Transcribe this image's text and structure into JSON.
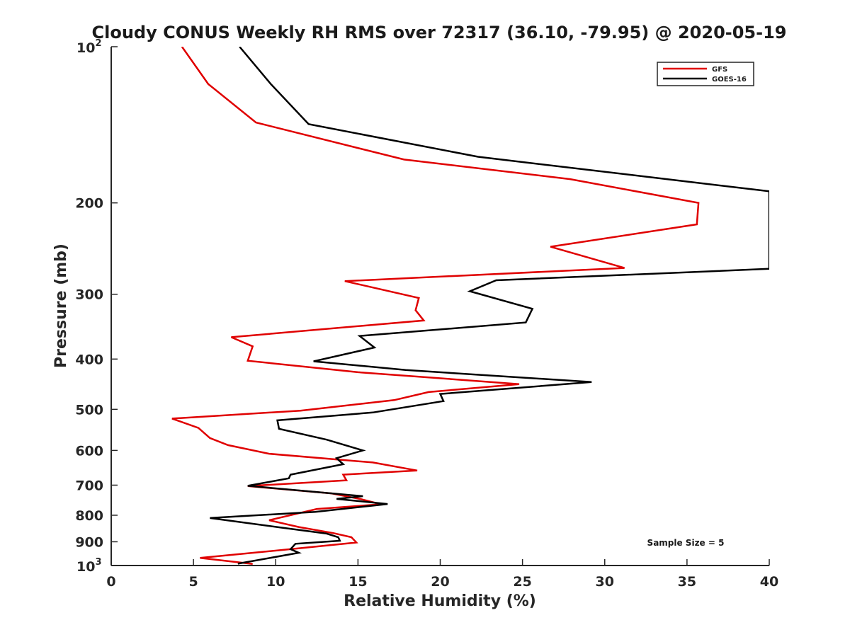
{
  "chart_data": {
    "type": "line",
    "title": "Cloudy CONUS Weekly RH RMS over 72317 (36.10, -79.95) @ 2020-05-19",
    "xlabel": "Relative Humidity (%)",
    "ylabel": "Pressure (mb)",
    "xlim": [
      0,
      40
    ],
    "ylim": [
      100,
      1000
    ],
    "y_scale": "log",
    "y_reversed": false,
    "grid": false,
    "legend_position": "top-right",
    "x_ticks": [
      "0",
      "5",
      "10",
      "15",
      "20",
      "25",
      "30",
      "35",
      "40"
    ],
    "y_ticks": [
      {
        "value": 100,
        "base": "10",
        "exp": "2"
      },
      {
        "value": 200,
        "label": "200"
      },
      {
        "value": 300,
        "label": "300"
      },
      {
        "value": 400,
        "label": "400"
      },
      {
        "value": 500,
        "label": "500"
      },
      {
        "value": 600,
        "label": "600"
      },
      {
        "value": 700,
        "label": "700"
      },
      {
        "value": 800,
        "label": "800"
      },
      {
        "value": 900,
        "label": "900"
      },
      {
        "value": 1000,
        "base": "10",
        "exp": "3"
      }
    ],
    "annotation": "Sample Size = 5",
    "series": [
      {
        "name": "GFS",
        "color": "#e00000",
        "points": [
          [
            4.3,
            100
          ],
          [
            5.9,
            118
          ],
          [
            8.8,
            140
          ],
          [
            17.8,
            165
          ],
          [
            27.9,
            180
          ],
          [
            35.7,
            200
          ],
          [
            35.6,
            220
          ],
          [
            26.7,
            243
          ],
          [
            31.2,
            267
          ],
          [
            14.2,
            283
          ],
          [
            18.7,
            305
          ],
          [
            18.5,
            322
          ],
          [
            19.0,
            337
          ],
          [
            7.3,
            363
          ],
          [
            8.6,
            378
          ],
          [
            8.3,
            403
          ],
          [
            15.0,
            424
          ],
          [
            24.8,
            447
          ],
          [
            19.3,
            463
          ],
          [
            17.2,
            480
          ],
          [
            11.5,
            503
          ],
          [
            3.7,
            521
          ],
          [
            5.3,
            543
          ],
          [
            6.0,
            568
          ],
          [
            7.1,
            586
          ],
          [
            9.6,
            609
          ],
          [
            15.9,
            633
          ],
          [
            18.6,
            656
          ],
          [
            14.1,
            668
          ],
          [
            14.3,
            685
          ],
          [
            8.3,
            703
          ],
          [
            13.4,
            726
          ],
          [
            15.2,
            745
          ],
          [
            16.4,
            762
          ],
          [
            12.5,
            778
          ],
          [
            9.6,
            818
          ],
          [
            11.4,
            843
          ],
          [
            13.5,
            866
          ],
          [
            14.6,
            882
          ],
          [
            14.9,
            903
          ],
          [
            10.9,
            930
          ],
          [
            5.4,
            967
          ],
          [
            8.6,
            993
          ]
        ]
      },
      {
        "name": "GOES-16",
        "color": "#000000",
        "points": [
          [
            7.8,
            100
          ],
          [
            9.7,
            118
          ],
          [
            12.0,
            141
          ],
          [
            22.3,
            163
          ],
          [
            40.0,
            190
          ],
          [
            40.0,
            268
          ],
          [
            23.4,
            282
          ],
          [
            21.8,
            296
          ],
          [
            25.6,
            320
          ],
          [
            25.2,
            340
          ],
          [
            15.1,
            361
          ],
          [
            16.0,
            380
          ],
          [
            12.3,
            404
          ],
          [
            17.9,
            420
          ],
          [
            29.2,
            443
          ],
          [
            20.0,
            467
          ],
          [
            20.2,
            482
          ],
          [
            15.9,
            507
          ],
          [
            10.1,
            525
          ],
          [
            10.2,
            545
          ],
          [
            13.1,
            572
          ],
          [
            15.3,
            600
          ],
          [
            13.7,
            621
          ],
          [
            14.1,
            638
          ],
          [
            10.9,
            668
          ],
          [
            10.8,
            679
          ],
          [
            8.3,
            702
          ],
          [
            15.3,
            735
          ],
          [
            13.7,
            744
          ],
          [
            16.8,
            761
          ],
          [
            12.4,
            788
          ],
          [
            6.0,
            810
          ],
          [
            10.2,
            844
          ],
          [
            13.1,
            868
          ],
          [
            13.8,
            882
          ],
          [
            13.9,
            896
          ],
          [
            11.2,
            908
          ],
          [
            10.9,
            930
          ],
          [
            11.4,
            945
          ],
          [
            7.7,
            992
          ]
        ]
      }
    ]
  }
}
